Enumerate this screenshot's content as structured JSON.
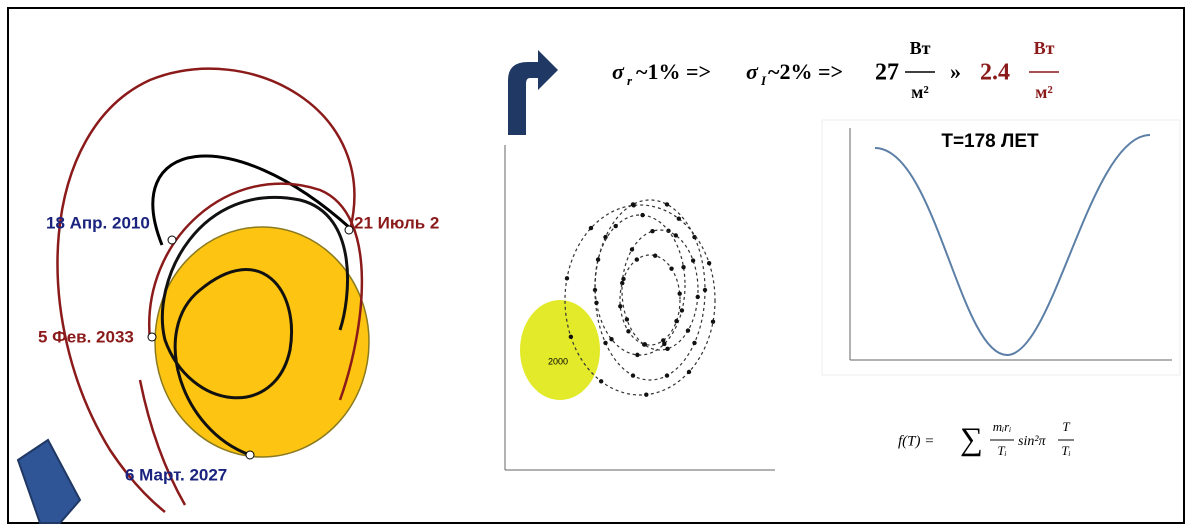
{
  "formula": {
    "items": [
      "σ",
      "r",
      "~1% =>",
      "σ",
      "I",
      "~2% =>",
      "27",
      "Вт",
      "м²",
      "»",
      "2.4",
      "Вт",
      "м²"
    ]
  },
  "orbit_labels": [
    "18 Апр. 2010",
    "21 Июль 2",
    "5 Фев. 2033",
    "6 Март. 2027"
  ],
  "sun_label": "2000",
  "plot_title": "T=178 ЛЕТ",
  "period_formula": {
    "lhs": "f(T) =",
    "sum": "∑",
    "numerator": "mᵢrᵢ",
    "denominator": "Tᵢ",
    "sine": "sin²π",
    "arg_top": "T",
    "arg_bottom": "Tᵢ"
  }
}
